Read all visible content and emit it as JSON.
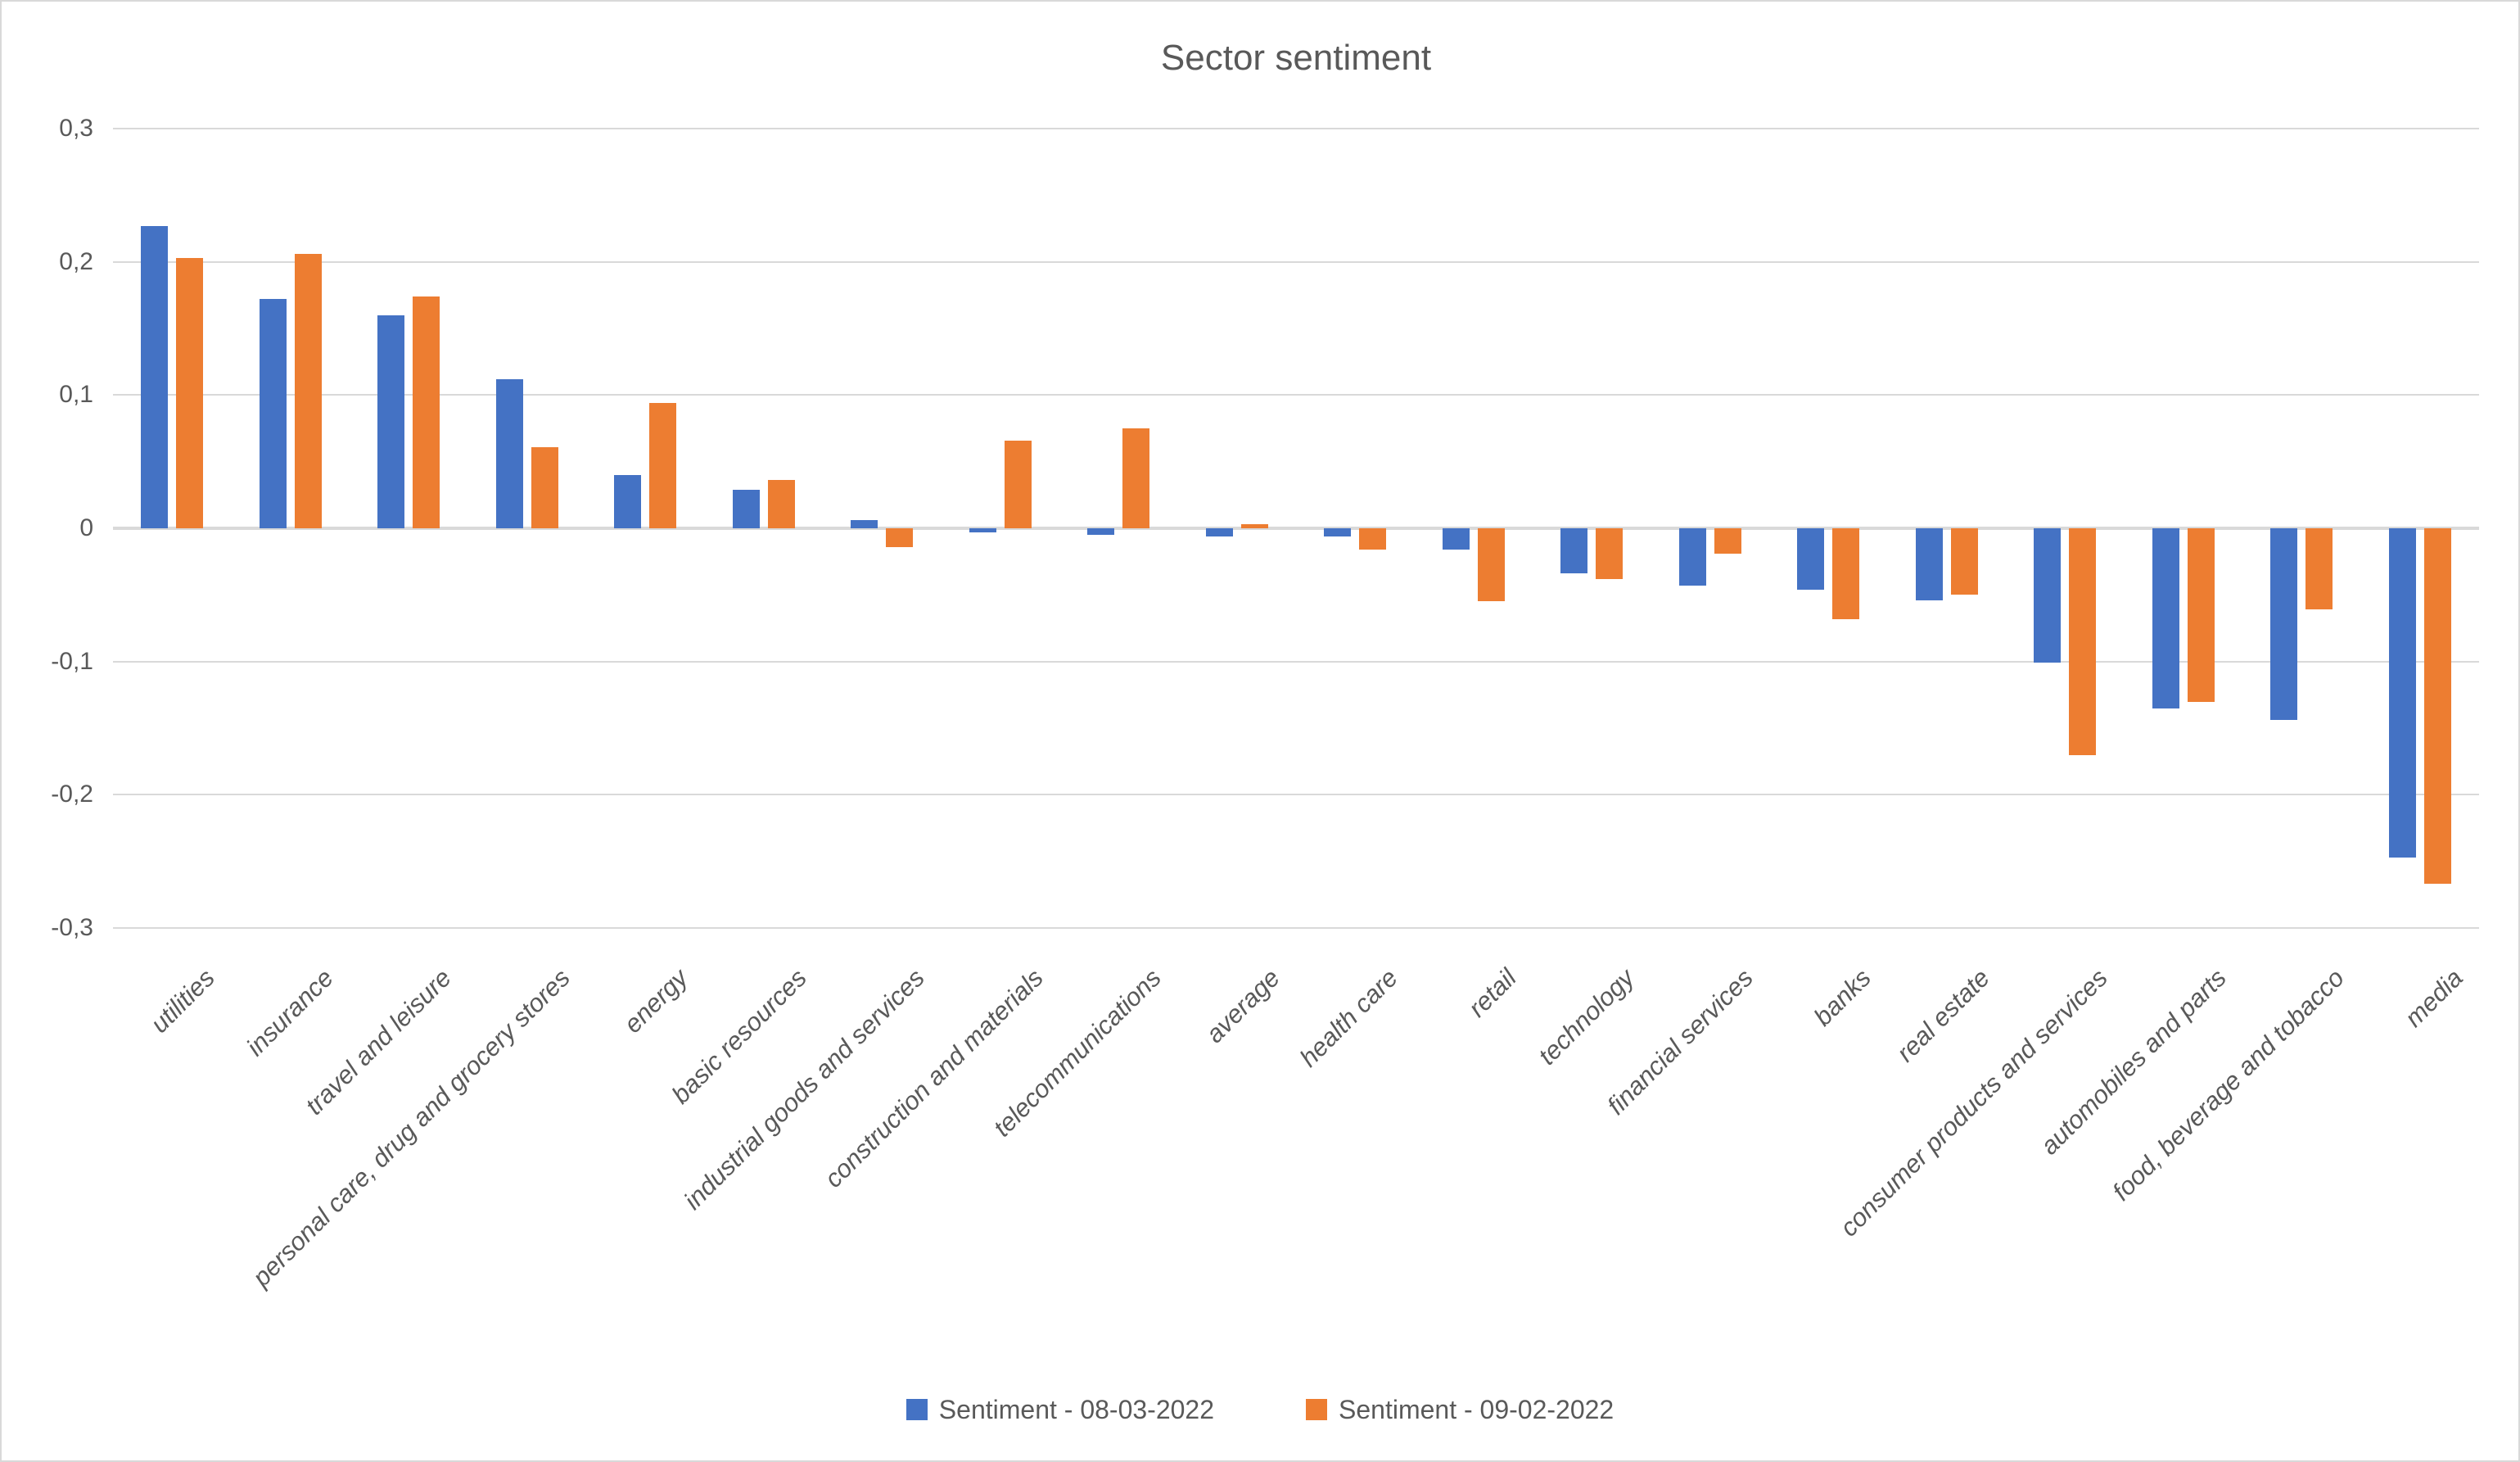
{
  "title": "Sector sentiment",
  "colors": {
    "series1": "#4472C4",
    "series2": "#ED7D31",
    "gridline": "#D9D9D9",
    "text": "#595959"
  },
  "y_axis": {
    "ticks": [
      {
        "label": "0,3",
        "value": 0.3
      },
      {
        "label": "0,2",
        "value": 0.2
      },
      {
        "label": "0,1",
        "value": 0.1
      },
      {
        "label": "0",
        "value": 0.0
      },
      {
        "label": "-0,1",
        "value": -0.1
      },
      {
        "label": "-0,2",
        "value": -0.2
      },
      {
        "label": "-0,3",
        "value": -0.3
      }
    ]
  },
  "chart_data": {
    "type": "bar",
    "title": "Sector sentiment",
    "categories": [
      "utilities",
      "insurance",
      "travel and leisure",
      "personal care, drug and grocery stores",
      "energy",
      "basic resources",
      "industrial goods and services",
      "construction and materials",
      "telecommunications",
      "average",
      "health care",
      "retail",
      "technology",
      "financial services",
      "banks",
      "real estate",
      "consumer products and services",
      "automobiles and parts",
      "food, beverage and tobacco",
      "media"
    ],
    "series": [
      {
        "name": "Sentiment - 08-03-2022",
        "color": "#4472C4",
        "values": [
          0.227,
          0.172,
          0.16,
          0.112,
          0.04,
          0.029,
          0.006,
          -0.003,
          -0.005,
          -0.006,
          -0.006,
          -0.016,
          -0.034,
          -0.043,
          -0.046,
          -0.054,
          -0.101,
          -0.135,
          -0.144,
          -0.247
        ]
      },
      {
        "name": "Sentiment - 09-02-2022",
        "color": "#ED7D31",
        "values": [
          0.203,
          0.206,
          0.174,
          0.061,
          0.094,
          0.036,
          -0.014,
          0.066,
          0.075,
          0.003,
          -0.016,
          -0.055,
          -0.038,
          -0.019,
          -0.068,
          -0.05,
          -0.17,
          -0.13,
          -0.061,
          -0.267
        ]
      }
    ],
    "ylim": [
      -0.3,
      0.3
    ],
    "grid": true,
    "legend_position": "bottom",
    "decimal_separator": ",",
    "xlabel": "",
    "ylabel": ""
  }
}
